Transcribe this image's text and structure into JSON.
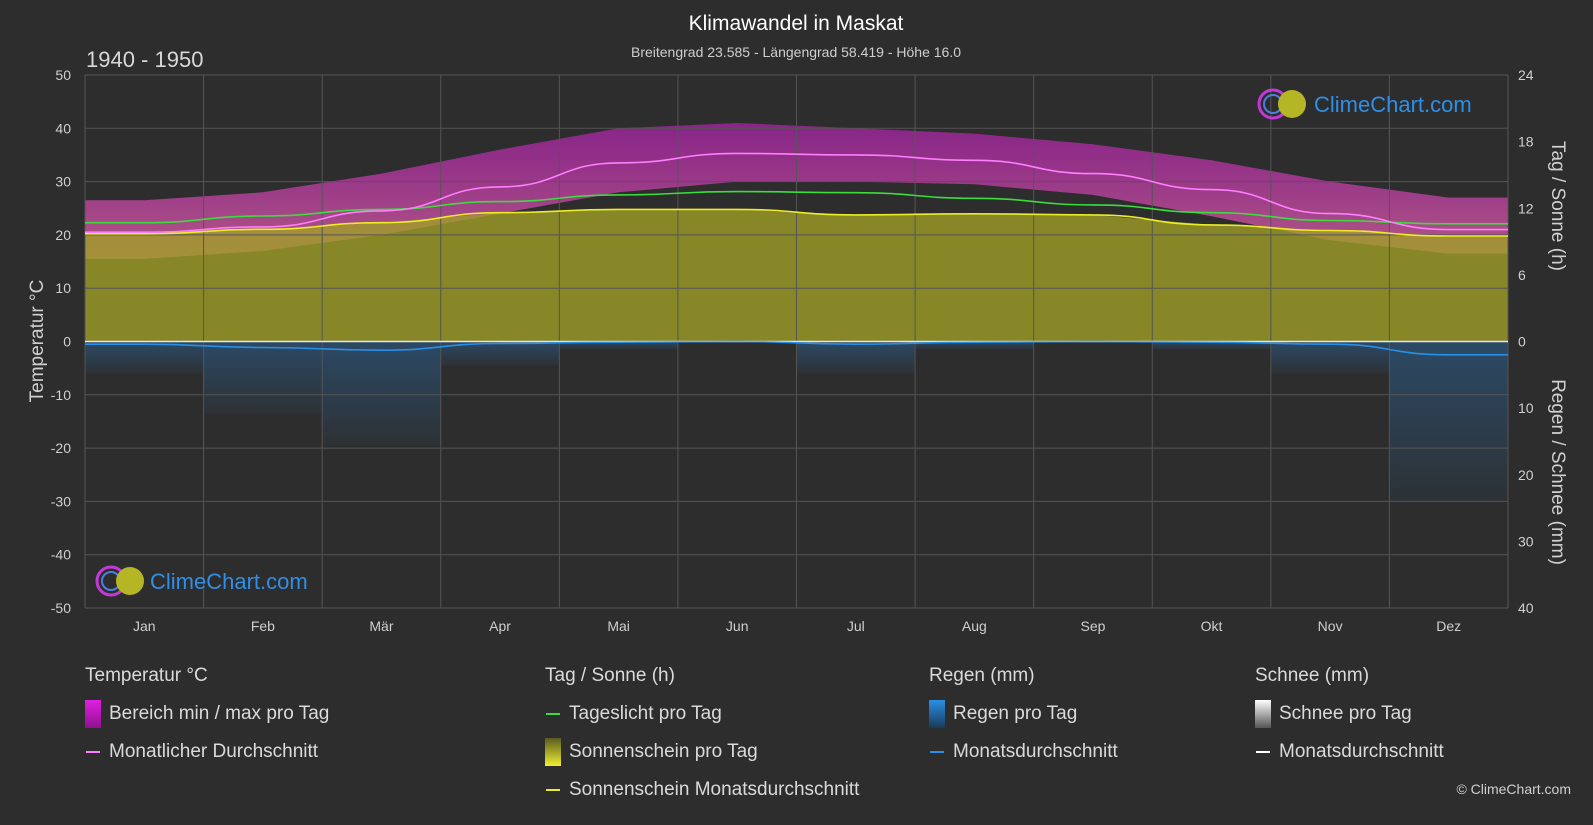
{
  "chart": {
    "title": "Klimawandel in Maskat",
    "subtitle": "Breitengrad 23.585 - Längengrad 58.419 - Höhe 16.0",
    "period": "1940 - 1950",
    "logo_text": "ClimeChart.com",
    "copyright": "© ClimeChart.com"
  },
  "axes": {
    "left_title": "Temperatur °C",
    "right_top_title": "Tag / Sonne (h)",
    "right_bottom_title": "Regen / Schnee (mm)",
    "left_ticks": [
      "50",
      "40",
      "30",
      "20",
      "10",
      "0",
      "-10",
      "-20",
      "-30",
      "-40",
      "-50"
    ],
    "right_top_ticks": [
      "24",
      "18",
      "12",
      "6",
      "0"
    ],
    "right_bottom_ticks": [
      "10",
      "20",
      "30",
      "40"
    ]
  },
  "legend": {
    "temp": {
      "title": "Temperatur °C",
      "range": "Bereich min / max pro Tag",
      "avg": "Monatlicher Durchschnitt"
    },
    "sun": {
      "title": "Tag / Sonne (h)",
      "daylight": "Tageslicht pro Tag",
      "sunshine": "Sonnenschein pro Tag",
      "sunshine_avg": "Sonnenschein Monatsdurchschnitt"
    },
    "rain": {
      "title": "Regen (mm)",
      "per_day": "Regen pro Tag",
      "avg": "Monatsdurchschnitt"
    },
    "snow": {
      "title": "Schnee (mm)",
      "per_day": "Schnee pro Tag",
      "avg": "Monatsdurchschnitt"
    }
  },
  "colors": {
    "background": "#2d2d2d",
    "temp_range": "#d21fd2",
    "temp_avg": "#ff7dff",
    "daylight": "#3ddc3d",
    "sunshine_fill": "#a0a026",
    "sunshine_avg": "#ecec2a",
    "rain": "#2a7fcf",
    "rain_avg": "#2a8fe6",
    "snow_avg": "#ffffff"
  },
  "chart_data": {
    "type": "line",
    "categories": [
      "Jan",
      "Feb",
      "Mär",
      "Apr",
      "Mai",
      "Jun",
      "Jul",
      "Aug",
      "Sep",
      "Okt",
      "Nov",
      "Dez"
    ],
    "ylim_left": [
      -50,
      50
    ],
    "ylim_right_top": [
      0,
      24
    ],
    "ylim_right_bottom": [
      0,
      40
    ],
    "grid": true,
    "series": [
      {
        "name": "Monatlicher Durchschnitt",
        "axis": "temperature",
        "values": [
          20.5,
          21.5,
          24.5,
          29.0,
          33.5,
          35.3,
          35.0,
          34.0,
          31.5,
          28.5,
          24.0,
          21.0
        ]
      },
      {
        "name": "Bereich min / max pro Tag",
        "axis": "temperature",
        "min": [
          15.5,
          17.0,
          20.0,
          24.0,
          28.0,
          30.0,
          30.0,
          29.5,
          27.5,
          23.5,
          19.0,
          16.5
        ],
        "max": [
          26.5,
          28.0,
          31.5,
          36.0,
          40.0,
          41.0,
          40.0,
          39.0,
          37.0,
          34.0,
          30.0,
          27.0
        ]
      },
      {
        "name": "Tageslicht pro Tag",
        "axis": "hours",
        "values": [
          10.7,
          11.3,
          11.9,
          12.6,
          13.2,
          13.5,
          13.4,
          12.9,
          12.3,
          11.6,
          10.9,
          10.6
        ]
      },
      {
        "name": "Sonnenschein pro Tag",
        "axis": "hours",
        "values": [
          9.7,
          10.1,
          10.7,
          11.6,
          11.9,
          11.9,
          11.4,
          11.5,
          11.4,
          10.5,
          10.0,
          9.5
        ]
      },
      {
        "name": "Sonnenschein Monatsdurchschnitt",
        "axis": "hours",
        "values": [
          9.7,
          10.1,
          10.7,
          11.6,
          11.9,
          11.9,
          11.4,
          11.5,
          11.4,
          10.5,
          10.0,
          9.5
        ]
      },
      {
        "name": "Regen Monatsdurchschnitt",
        "axis": "precipitation",
        "values": [
          0.4,
          0.9,
          1.3,
          0.3,
          0.1,
          0.0,
          0.4,
          0.1,
          0.0,
          0.1,
          0.4,
          2.0
        ]
      },
      {
        "name": "Schnee Monatsdurchschnitt",
        "axis": "precipitation",
        "values": [
          0,
          0,
          0,
          0,
          0,
          0,
          0,
          0,
          0,
          0,
          0,
          0
        ]
      }
    ]
  }
}
